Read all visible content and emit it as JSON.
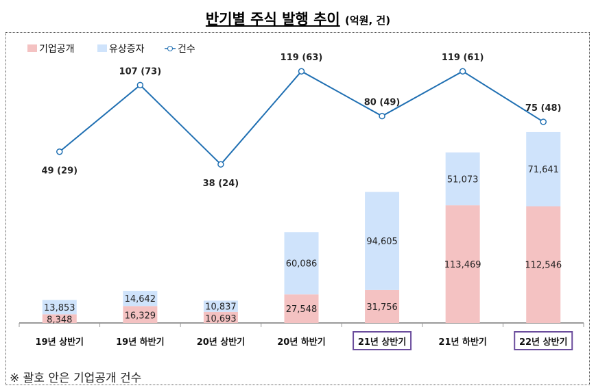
{
  "chart_data": {
    "type": "bar",
    "title": "반기별 주식 발행 추이",
    "unit": "(억원, 건)",
    "categories": [
      "19년 상반기",
      "19년 하반기",
      "20년 상반기",
      "20년 하반기",
      "21년 상반기",
      "21년 하반기",
      "22년 상반기"
    ],
    "highlighted_categories": [
      "21년 상반기",
      "22년 상반기"
    ],
    "stacked": true,
    "series": [
      {
        "name": "기업공개",
        "type": "bar",
        "color": "#f4c2c2",
        "values": [
          8348,
          16329,
          10693,
          27548,
          31756,
          113469,
          112546
        ]
      },
      {
        "name": "유상증자",
        "type": "bar",
        "color": "#cfe3fb",
        "values": [
          13853,
          14642,
          10837,
          60086,
          94605,
          51073,
          71641
        ]
      },
      {
        "name": "건수",
        "type": "line",
        "color": "#1f6fb2",
        "values": [
          49,
          107,
          38,
          119,
          80,
          119,
          75
        ],
        "ipo_counts": [
          29,
          73,
          24,
          63,
          49,
          61,
          48
        ]
      }
    ],
    "legend_placement": "top-left",
    "grid": false,
    "note": "※ 괄호 안은 기업공개 건수"
  }
}
